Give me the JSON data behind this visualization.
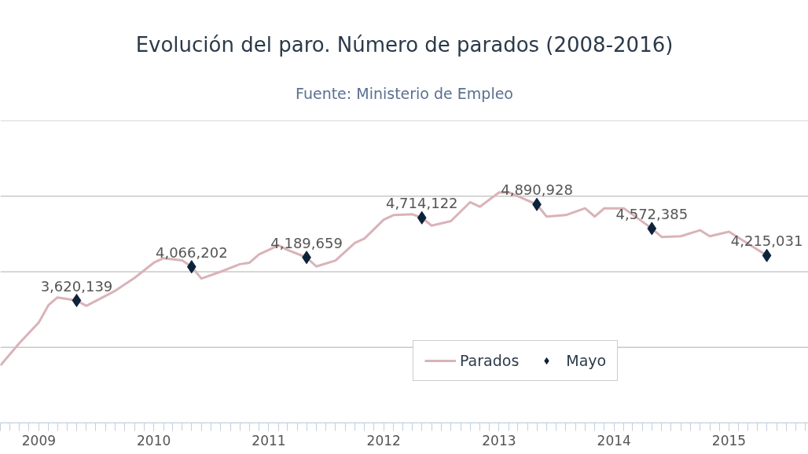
{
  "chart_data": {
    "type": "line",
    "title": "Evolución del paro. Número de parados (2008-2016)",
    "subtitle": "Fuente: Ministerio de Empleo",
    "xlim": [
      "2008-09-01",
      "2015-09-10"
    ],
    "xticks": [
      {
        "value": "2009-01",
        "label": "2009"
      },
      {
        "value": "2010-01",
        "label": "2010"
      },
      {
        "value": "2011-01",
        "label": "2011"
      },
      {
        "value": "2012-01",
        "label": "2012"
      },
      {
        "value": "2013-01",
        "label": "2013"
      },
      {
        "value": "2014-01",
        "label": "2014"
      },
      {
        "value": "2015-01",
        "label": "2015"
      }
    ],
    "yticks": [
      {
        "value": 2000000,
        "label": null
      },
      {
        "value": 3000000,
        "label": null
      },
      {
        "value": 4000000,
        "label": null
      },
      {
        "value": 5000000,
        "label": null
      },
      {
        "value": 6000000,
        "label": null
      }
    ],
    "tick_labels": "x",
    "grid": "y",
    "legend": "bottom",
    "line_style": "solid",
    "series": [
      {
        "name": "Parados",
        "color": "#d9b3b8",
        "marker": "none",
        "x": [
          "2008-09",
          "2008-11",
          "2009-01",
          "2009-02",
          "2009-03",
          "2009-05",
          "2009-06",
          "2009-09",
          "2009-11",
          "2010-01",
          "2010-02",
          "2010-04",
          "2010-05",
          "2010-06",
          "2010-08",
          "2010-10",
          "2010-11",
          "2010-12",
          "2011-02",
          "2011-03",
          "2011-05",
          "2011-06",
          "2011-08",
          "2011-10",
          "2011-11",
          "2012-01",
          "2012-02",
          "2012-04",
          "2012-05",
          "2012-06",
          "2012-08",
          "2012-10",
          "2012-11",
          "2013-01",
          "2013-02",
          "2013-05",
          "2013-06",
          "2013-08",
          "2013-10",
          "2013-11",
          "2013-12",
          "2014-02",
          "2014-05",
          "2014-06",
          "2014-08",
          "2014-10",
          "2014-11",
          "2015-01",
          "2015-05"
        ],
        "values": [
          2760000,
          3060000,
          3330000,
          3560000,
          3660000,
          3620139,
          3550000,
          3750000,
          3920000,
          4120000,
          4180000,
          4150000,
          4066202,
          3910000,
          4000000,
          4100000,
          4120000,
          4230000,
          4350000,
          4290000,
          4189659,
          4070000,
          4150000,
          4380000,
          4440000,
          4690000,
          4750000,
          4760000,
          4714122,
          4610000,
          4670000,
          4920000,
          4860000,
          5050000,
          5050000,
          4890928,
          4730000,
          4750000,
          4840000,
          4730000,
          4840000,
          4840000,
          4572385,
          4460000,
          4470000,
          4550000,
          4470000,
          4530000,
          4215031
        ]
      },
      {
        "name": "Mayo",
        "type": "scatter",
        "color": "#0d233a",
        "marker": "diamond",
        "x": [
          "2009-05",
          "2010-05",
          "2011-05",
          "2012-05",
          "2013-05",
          "2014-05",
          "2015-05"
        ],
        "values": [
          3620139,
          4066202,
          4189659,
          4714122,
          4890928,
          4572385,
          4215031
        ],
        "value_labels": [
          "3,620,139",
          "4,066,202",
          "4,189,659",
          "4,714,122",
          "4,890,928",
          "4,572,385",
          "4,215,031"
        ]
      }
    ]
  }
}
